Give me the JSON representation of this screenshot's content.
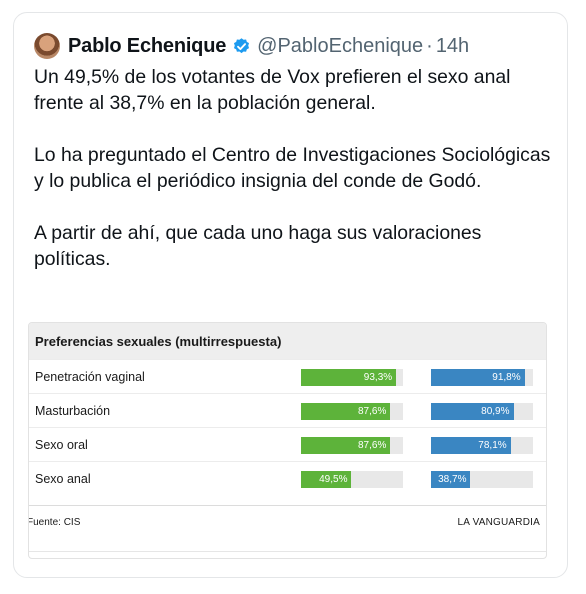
{
  "tweet": {
    "display_name": "Pablo Echenique",
    "handle": "@PabloEchenique",
    "separator": "·",
    "time": "14h",
    "verified_icon": "verified-badge-icon",
    "verified_color": "#1d9bf0",
    "paragraphs": [
      "Un 49,5% de los votantes de Vox prefieren el sexo anal frente al 38,7% en la población general.",
      "Lo ha preguntado el Centro de Investigaciones Sociológicas y lo publica el periódico insignia del conde de Godó.",
      "A partir de ahí, que cada uno haga sus valoraciones políticas."
    ]
  },
  "embedded_table": {
    "title": "Preferencias sexuales (multirrespuesta)",
    "source": "Fuente: CIS",
    "brand": "LA VANGUARDIA",
    "colors": {
      "vox": "#5db33a",
      "general": "#3a86c2",
      "track": "#e8e8e8"
    },
    "rows": [
      {
        "label": "Penetración vaginal",
        "vox": 93.3,
        "vox_label": "93,3%",
        "general": 91.8,
        "general_label": "91,8%"
      },
      {
        "label": "Masturbación",
        "vox": 87.6,
        "vox_label": "87,6%",
        "general": 80.9,
        "general_label": "80,9%"
      },
      {
        "label": "Sexo oral",
        "vox": 87.6,
        "vox_label": "87,6%",
        "general": 78.1,
        "general_label": "78,1%"
      },
      {
        "label": "Sexo anal",
        "vox": 49.5,
        "vox_label": "49,5%",
        "general": 38.7,
        "general_label": "38,7%"
      }
    ]
  }
}
